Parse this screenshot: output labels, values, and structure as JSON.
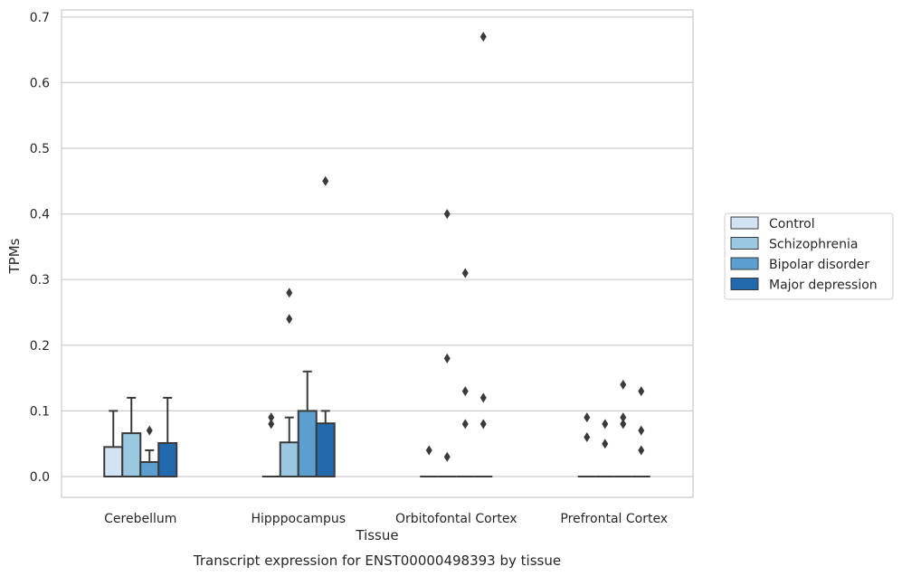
{
  "chart_data": {
    "type": "box",
    "title": "Transcript expression for ENST00000498393 by tissue",
    "xlabel": "Tissue",
    "ylabel": "TPMs",
    "ylim": [
      -0.032,
      0.705
    ],
    "yticks": [
      "0.0",
      "0.1",
      "0.2",
      "0.3",
      "0.4",
      "0.5",
      "0.6",
      "0.7"
    ],
    "grid": "horizontal",
    "legend_position": "right",
    "categories": [
      "Cerebellum",
      "Hipppocampus",
      "Orbitofontal Cortex",
      "Prefrontal Cortex"
    ],
    "series": [
      {
        "name": "Control",
        "color": "#d2e3f3",
        "boxes": [
          {
            "q1": 0.0,
            "median": 0.0,
            "q3": 0.045,
            "whisker_low": 0.0,
            "whisker_high": 0.1,
            "outliers": []
          },
          {
            "q1": 0.0,
            "median": 0.0,
            "q3": 0.0,
            "whisker_low": 0.0,
            "whisker_high": 0.0,
            "outliers": [
              0.08,
              0.09
            ]
          },
          {
            "q1": 0.0,
            "median": 0.0,
            "q3": 0.0,
            "whisker_low": 0.0,
            "whisker_high": 0.0,
            "outliers": [
              0.04
            ]
          },
          {
            "q1": 0.0,
            "median": 0.0,
            "q3": 0.0,
            "whisker_low": 0.0,
            "whisker_high": 0.0,
            "outliers": [
              0.06,
              0.09
            ]
          }
        ]
      },
      {
        "name": "Schizophrenia",
        "color": "#9ac8e0",
        "boxes": [
          {
            "q1": 0.0,
            "median": 0.0,
            "q3": 0.066,
            "whisker_low": 0.0,
            "whisker_high": 0.12,
            "outliers": []
          },
          {
            "q1": 0.0,
            "median": 0.0,
            "q3": 0.052,
            "whisker_low": 0.0,
            "whisker_high": 0.09,
            "outliers": [
              0.24,
              0.28
            ]
          },
          {
            "q1": 0.0,
            "median": 0.0,
            "q3": 0.0,
            "whisker_low": 0.0,
            "whisker_high": 0.0,
            "outliers": [
              0.03,
              0.18,
              0.4
            ]
          },
          {
            "q1": 0.0,
            "median": 0.0,
            "q3": 0.0,
            "whisker_low": 0.0,
            "whisker_high": 0.0,
            "outliers": [
              0.05,
              0.08
            ]
          }
        ]
      },
      {
        "name": "Bipolar disorder",
        "color": "#5a9fcf",
        "boxes": [
          {
            "q1": 0.0,
            "median": 0.0,
            "q3": 0.022,
            "whisker_low": 0.0,
            "whisker_high": 0.04,
            "outliers": [
              0.07
            ]
          },
          {
            "q1": 0.0,
            "median": 0.0,
            "q3": 0.1,
            "whisker_low": 0.0,
            "whisker_high": 0.16,
            "outliers": []
          },
          {
            "q1": 0.0,
            "median": 0.0,
            "q3": 0.0,
            "whisker_low": 0.0,
            "whisker_high": 0.0,
            "outliers": [
              0.08,
              0.13,
              0.31
            ]
          },
          {
            "q1": 0.0,
            "median": 0.0,
            "q3": 0.0,
            "whisker_low": 0.0,
            "whisker_high": 0.0,
            "outliers": [
              0.08,
              0.09,
              0.14
            ]
          }
        ]
      },
      {
        "name": "Major depression",
        "color": "#2369ad",
        "boxes": [
          {
            "q1": 0.0,
            "median": 0.0,
            "q3": 0.051,
            "whisker_low": 0.0,
            "whisker_high": 0.12,
            "outliers": []
          },
          {
            "q1": 0.0,
            "median": 0.0,
            "q3": 0.081,
            "whisker_low": 0.0,
            "whisker_high": 0.1,
            "outliers": [
              0.45
            ]
          },
          {
            "q1": 0.0,
            "median": 0.0,
            "q3": 0.0,
            "whisker_low": 0.0,
            "whisker_high": 0.0,
            "outliers": [
              0.08,
              0.12,
              0.67
            ]
          },
          {
            "q1": 0.0,
            "median": 0.0,
            "q3": 0.0,
            "whisker_low": 0.0,
            "whisker_high": 0.0,
            "outliers": [
              0.04,
              0.07,
              0.13
            ]
          }
        ]
      }
    ]
  }
}
